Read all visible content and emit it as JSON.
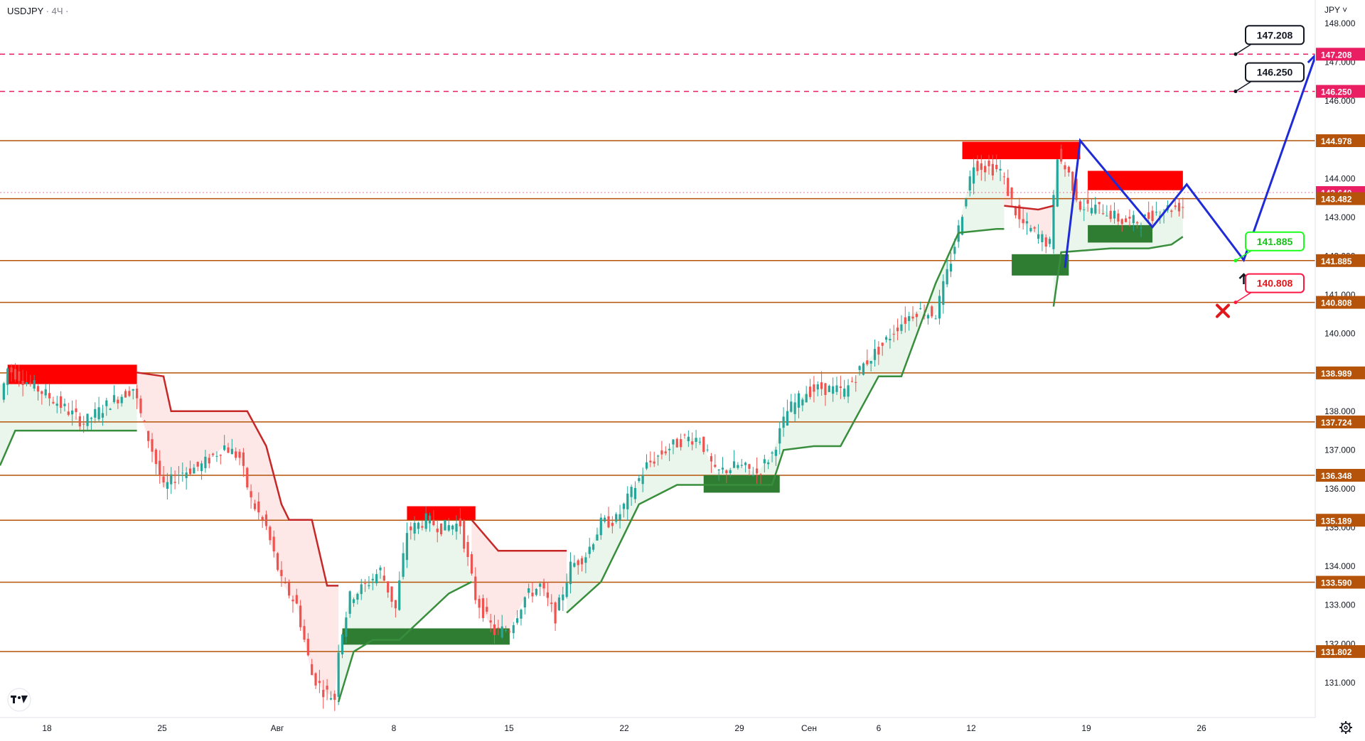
{
  "header": {
    "symbol": "USDJPY",
    "timeframe": "4Ч"
  },
  "price_axis": {
    "currency_label": "JPY"
  },
  "icons": {
    "logo": "tradingview-logo-icon",
    "settings": "gear-icon",
    "target": "cross-mark-icon",
    "pivot": "up-arrow-icon"
  },
  "colors": {
    "up_candle": "#26a69a",
    "down_candle": "#ef5350",
    "wick": "#5d606b",
    "horizontal_level": "#b45309",
    "resistance_dashed": "#e91e63",
    "supertrend_up": "#388e3c",
    "supertrend_down": "#c62828",
    "supply_zone": "#ff0000",
    "demand_zone": "#2e7d32",
    "forecast_path": "#1f2bd6",
    "label_green": "#1aff1a",
    "label_red": "#ff1744"
  },
  "chart_data": {
    "type": "candlestick",
    "x_ticks": [
      "18",
      "25",
      "Авг",
      "8",
      "15",
      "22",
      "29",
      "Сен",
      "6",
      "12",
      "19",
      "26"
    ],
    "y_ticks": [
      "131.000",
      "132.000",
      "133.000",
      "134.000",
      "135.000",
      "136.000",
      "137.000",
      "138.000",
      "139.000",
      "140.000",
      "141.000",
      "142.000",
      "143.000",
      "144.000",
      "145.000",
      "146.000",
      "147.000",
      "148.000"
    ],
    "ylim": [
      130.1,
      148.4
    ],
    "grid": false,
    "levels": [
      {
        "value": 147.208,
        "label": "147.208",
        "style": "dashed",
        "color": "#e91e63"
      },
      {
        "value": 146.25,
        "label": "146.250",
        "style": "dashed",
        "color": "#e91e63"
      },
      {
        "value": 144.978,
        "label": "144.978",
        "style": "solid",
        "color": "#b45309"
      },
      {
        "value": 143.64,
        "label": "143.640",
        "style": "dotted",
        "color": "#e91e63"
      },
      {
        "value": 143.482,
        "label": "143.482",
        "style": "solid",
        "color": "#b45309"
      },
      {
        "value": 141.885,
        "label": "141.885",
        "style": "solid",
        "color": "#b45309"
      },
      {
        "value": 140.808,
        "label": "140.808",
        "style": "solid",
        "color": "#b45309"
      },
      {
        "value": 138.989,
        "label": "138.989",
        "style": "solid",
        "color": "#b45309"
      },
      {
        "value": 137.724,
        "label": "137.724",
        "style": "solid",
        "color": "#b45309"
      },
      {
        "value": 136.348,
        "label": "136.348",
        "style": "solid",
        "color": "#b45309"
      },
      {
        "value": 135.189,
        "label": "135.189",
        "style": "solid",
        "color": "#b45309"
      },
      {
        "value": 133.59,
        "label": "133.590",
        "style": "solid",
        "color": "#b45309"
      },
      {
        "value": 131.802,
        "label": "131.802",
        "style": "solid",
        "color": "#b45309"
      }
    ],
    "callouts": [
      {
        "text": "147.208",
        "value": 147.208,
        "style": "dark"
      },
      {
        "text": "146.250",
        "value": 146.25,
        "style": "dark"
      },
      {
        "text": "141.885",
        "value": 141.885,
        "style": "green"
      },
      {
        "text": "140.808",
        "value": 140.808,
        "style": "red"
      }
    ],
    "supertrend": [
      [
        0,
        136.6,
        "up"
      ],
      [
        4,
        137.5,
        "up"
      ],
      [
        10,
        137.5,
        "up"
      ],
      [
        16,
        137.5,
        "up"
      ],
      [
        25,
        137.5,
        "up"
      ],
      [
        36,
        137.5,
        "up"
      ],
      [
        36,
        139.0,
        "down"
      ],
      [
        43,
        138.9,
        "down"
      ],
      [
        45,
        138.0,
        "down"
      ],
      [
        65,
        138.0,
        "down"
      ],
      [
        70,
        137.1,
        "down"
      ],
      [
        74,
        135.6,
        "down"
      ],
      [
        76,
        135.2,
        "down"
      ],
      [
        82,
        135.2,
        "down"
      ],
      [
        86,
        133.5,
        "down"
      ],
      [
        89,
        133.5,
        "down"
      ],
      [
        89,
        130.5,
        "up"
      ],
      [
        93,
        131.8,
        "up"
      ],
      [
        98,
        132.1,
        "up"
      ],
      [
        105,
        132.1,
        "up"
      ],
      [
        118,
        133.3,
        "up"
      ],
      [
        124,
        133.6,
        "up"
      ],
      [
        124,
        135.2,
        "down"
      ],
      [
        131,
        134.4,
        "down"
      ],
      [
        149,
        134.4,
        "down"
      ],
      [
        149,
        132.8,
        "up"
      ],
      [
        158,
        133.6,
        "up"
      ],
      [
        168,
        135.6,
        "up"
      ],
      [
        176,
        136.0,
        "up"
      ],
      [
        178,
        136.1,
        "up"
      ],
      [
        184,
        136.1,
        "up"
      ],
      [
        203,
        136.1,
        "up"
      ],
      [
        206,
        137.0,
        "up"
      ],
      [
        214,
        137.1,
        "up"
      ],
      [
        221,
        137.1,
        "up"
      ],
      [
        231,
        138.9,
        "up"
      ],
      [
        237,
        138.9,
        "up"
      ],
      [
        246,
        141.3,
        "up"
      ],
      [
        252,
        142.6,
        "up"
      ],
      [
        262,
        142.7,
        "up"
      ],
      [
        264,
        142.7,
        "up"
      ],
      [
        264,
        143.3,
        "down"
      ],
      [
        273,
        143.2,
        "down"
      ],
      [
        277,
        143.3,
        "down"
      ],
      [
        277,
        140.7,
        "up"
      ],
      [
        279,
        142.1,
        "up"
      ],
      [
        292,
        142.2,
        "up"
      ],
      [
        302,
        142.2,
        "up"
      ],
      [
        308,
        142.3,
        "up"
      ],
      [
        311,
        142.5,
        "up"
      ]
    ],
    "zones": [
      {
        "kind": "supply",
        "from": 2,
        "to": 36,
        "low": 138.7,
        "high": 139.2
      },
      {
        "kind": "demand",
        "from": 90,
        "to": 134,
        "low": 131.98,
        "high": 132.4
      },
      {
        "kind": "supply",
        "from": 107,
        "to": 125,
        "low": 135.2,
        "high": 135.55
      },
      {
        "kind": "demand",
        "from": 185,
        "to": 205,
        "low": 135.9,
        "high": 136.35
      },
      {
        "kind": "supply",
        "from": 253,
        "to": 284,
        "low": 144.5,
        "high": 144.95
      },
      {
        "kind": "demand",
        "from": 266,
        "to": 281,
        "low": 141.5,
        "high": 142.05
      },
      {
        "kind": "supply",
        "from": 286,
        "to": 311,
        "low": 143.7,
        "high": 144.2
      },
      {
        "kind": "demand",
        "from": 286,
        "to": 303,
        "low": 142.35,
        "high": 142.8
      }
    ],
    "forecast_path": [
      [
        280,
        141.7
      ],
      [
        284,
        144.98
      ],
      [
        303,
        142.75
      ],
      [
        312,
        143.85
      ],
      [
        327,
        141.9
      ],
      [
        346,
        147.2
      ]
    ],
    "candles_anchor": [
      [
        0,
        138.3
      ],
      [
        2,
        139.1
      ],
      [
        8,
        138.7
      ],
      [
        14,
        138.3
      ],
      [
        22,
        137.7
      ],
      [
        30,
        138.3
      ],
      [
        35,
        138.6
      ],
      [
        37,
        137.9
      ],
      [
        40,
        137.0
      ],
      [
        43,
        136.0
      ],
      [
        47,
        136.4
      ],
      [
        53,
        136.6
      ],
      [
        59,
        137.1
      ],
      [
        63,
        136.8
      ],
      [
        66,
        135.7
      ],
      [
        70,
        135.0
      ],
      [
        74,
        133.6
      ],
      [
        78,
        133.0
      ],
      [
        82,
        131.2
      ],
      [
        85,
        130.8
      ],
      [
        88,
        130.6
      ],
      [
        89,
        131.9
      ],
      [
        92,
        133.2
      ],
      [
        96,
        133.5
      ],
      [
        100,
        133.9
      ],
      [
        104,
        132.9
      ],
      [
        107,
        134.9
      ],
      [
        112,
        135.2
      ],
      [
        116,
        135.0
      ],
      [
        121,
        135.1
      ],
      [
        125,
        133.2
      ],
      [
        130,
        132.3
      ],
      [
        134,
        132.4
      ],
      [
        138,
        133.2
      ],
      [
        142,
        133.5
      ],
      [
        146,
        132.7
      ],
      [
        150,
        134.0
      ],
      [
        154,
        134.3
      ],
      [
        158,
        135.1
      ],
      [
        162,
        135.2
      ],
      [
        166,
        135.9
      ],
      [
        170,
        136.6
      ],
      [
        175,
        137.0
      ],
      [
        180,
        137.3
      ],
      [
        184,
        137.3
      ],
      [
        188,
        136.4
      ],
      [
        194,
        136.6
      ],
      [
        199,
        136.4
      ],
      [
        203,
        136.9
      ],
      [
        207,
        138.0
      ],
      [
        212,
        138.5
      ],
      [
        216,
        138.6
      ],
      [
        222,
        138.5
      ],
      [
        227,
        139.2
      ],
      [
        232,
        139.7
      ],
      [
        236,
        140.2
      ],
      [
        241,
        140.6
      ],
      [
        246,
        140.5
      ],
      [
        250,
        141.9
      ],
      [
        252,
        142.7
      ],
      [
        254,
        143.6
      ],
      [
        256,
        144.4
      ],
      [
        259,
        144.3
      ],
      [
        263,
        144.2
      ],
      [
        266,
        143.4
      ],
      [
        268,
        142.9
      ],
      [
        272,
        142.6
      ],
      [
        276,
        142.3
      ],
      [
        278,
        144.6
      ],
      [
        281,
        144.1
      ],
      [
        284,
        143.3
      ],
      [
        290,
        143.2
      ],
      [
        295,
        142.9
      ],
      [
        300,
        142.9
      ],
      [
        305,
        143.2
      ],
      [
        311,
        143.3
      ]
    ]
  }
}
